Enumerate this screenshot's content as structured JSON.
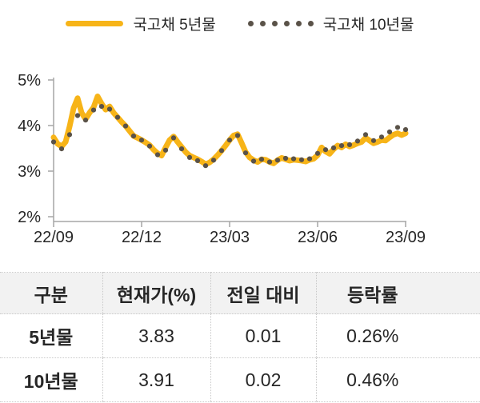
{
  "legend": {
    "series5_label": "국고채 5년물",
    "series10_label": "국고채 10년물"
  },
  "colors": {
    "line_5y": "#F7B418",
    "dots_10y": "#5A5248",
    "axis": "#A6A6A6",
    "text": "#262626",
    "table_header_bg": "#F2F2F2",
    "table_border": "#C8C8C8"
  },
  "chart_data": {
    "type": "line",
    "title": "",
    "xlabel": "",
    "ylabel": "",
    "ylim": [
      2,
      5
    ],
    "grid": false,
    "legend_position": "top",
    "x_ticks": [
      "22/09",
      "22/12",
      "23/03",
      "23/06",
      "23/09"
    ],
    "y_ticks": [
      {
        "value": 5,
        "label": "5%"
      },
      {
        "value": 4,
        "label": "4%"
      },
      {
        "value": 3,
        "label": "3%"
      },
      {
        "value": 2,
        "label": "2%"
      }
    ],
    "series": [
      {
        "name": "국고채 5년물",
        "style": "solid-line",
        "color": "#F7B418",
        "last_value": 3.83,
        "values": [
          3.74,
          3.6,
          3.54,
          3.64,
          3.98,
          4.38,
          4.6,
          4.28,
          4.14,
          4.28,
          4.4,
          4.64,
          4.48,
          4.35,
          4.42,
          4.28,
          4.18,
          4.08,
          3.99,
          3.88,
          3.77,
          3.73,
          3.68,
          3.63,
          3.57,
          3.47,
          3.39,
          3.34,
          3.52,
          3.68,
          3.76,
          3.64,
          3.53,
          3.42,
          3.34,
          3.3,
          3.26,
          3.21,
          3.15,
          3.19,
          3.26,
          3.35,
          3.45,
          3.56,
          3.68,
          3.78,
          3.81,
          3.62,
          3.42,
          3.3,
          3.24,
          3.2,
          3.26,
          3.25,
          3.2,
          3.17,
          3.24,
          3.29,
          3.26,
          3.23,
          3.25,
          3.24,
          3.23,
          3.21,
          3.25,
          3.27,
          3.35,
          3.52,
          3.43,
          3.38,
          3.48,
          3.56,
          3.52,
          3.59,
          3.54,
          3.57,
          3.61,
          3.64,
          3.73,
          3.67,
          3.61,
          3.64,
          3.68,
          3.67,
          3.74,
          3.8,
          3.83,
          3.79,
          3.83
        ]
      },
      {
        "name": "국고채 10년물",
        "style": "dotted-line",
        "color": "#5A5248",
        "last_value": 3.91,
        "values": [
          3.64,
          3.53,
          3.49,
          3.58,
          3.8,
          4.08,
          4.22,
          4.16,
          4.12,
          4.2,
          4.34,
          4.54,
          4.42,
          4.33,
          4.36,
          4.26,
          4.18,
          4.06,
          3.99,
          3.86,
          3.77,
          3.7,
          3.68,
          3.59,
          3.55,
          3.42,
          3.36,
          3.29,
          3.46,
          3.64,
          3.73,
          3.58,
          3.49,
          3.4,
          3.3,
          3.28,
          3.23,
          3.17,
          3.12,
          3.15,
          3.24,
          3.32,
          3.45,
          3.54,
          3.68,
          3.76,
          3.78,
          3.62,
          3.4,
          3.3,
          3.22,
          3.2,
          3.26,
          3.27,
          3.2,
          3.19,
          3.24,
          3.31,
          3.28,
          3.23,
          3.27,
          3.27,
          3.25,
          3.24,
          3.27,
          3.3,
          3.39,
          3.55,
          3.47,
          3.41,
          3.51,
          3.6,
          3.56,
          3.64,
          3.58,
          3.62,
          3.66,
          3.7,
          3.8,
          3.73,
          3.67,
          3.7,
          3.75,
          3.75,
          3.86,
          3.94,
          3.96,
          3.89,
          3.91
        ]
      }
    ]
  },
  "table": {
    "headers": [
      "구분",
      "현재가(%)",
      "전일 대비",
      "등락률"
    ],
    "rows": [
      {
        "cells": [
          "5년물",
          "3.83",
          "0.01",
          "0.26%"
        ]
      },
      {
        "cells": [
          "10년물",
          "3.91",
          "0.02",
          "0.46%"
        ]
      }
    ]
  }
}
